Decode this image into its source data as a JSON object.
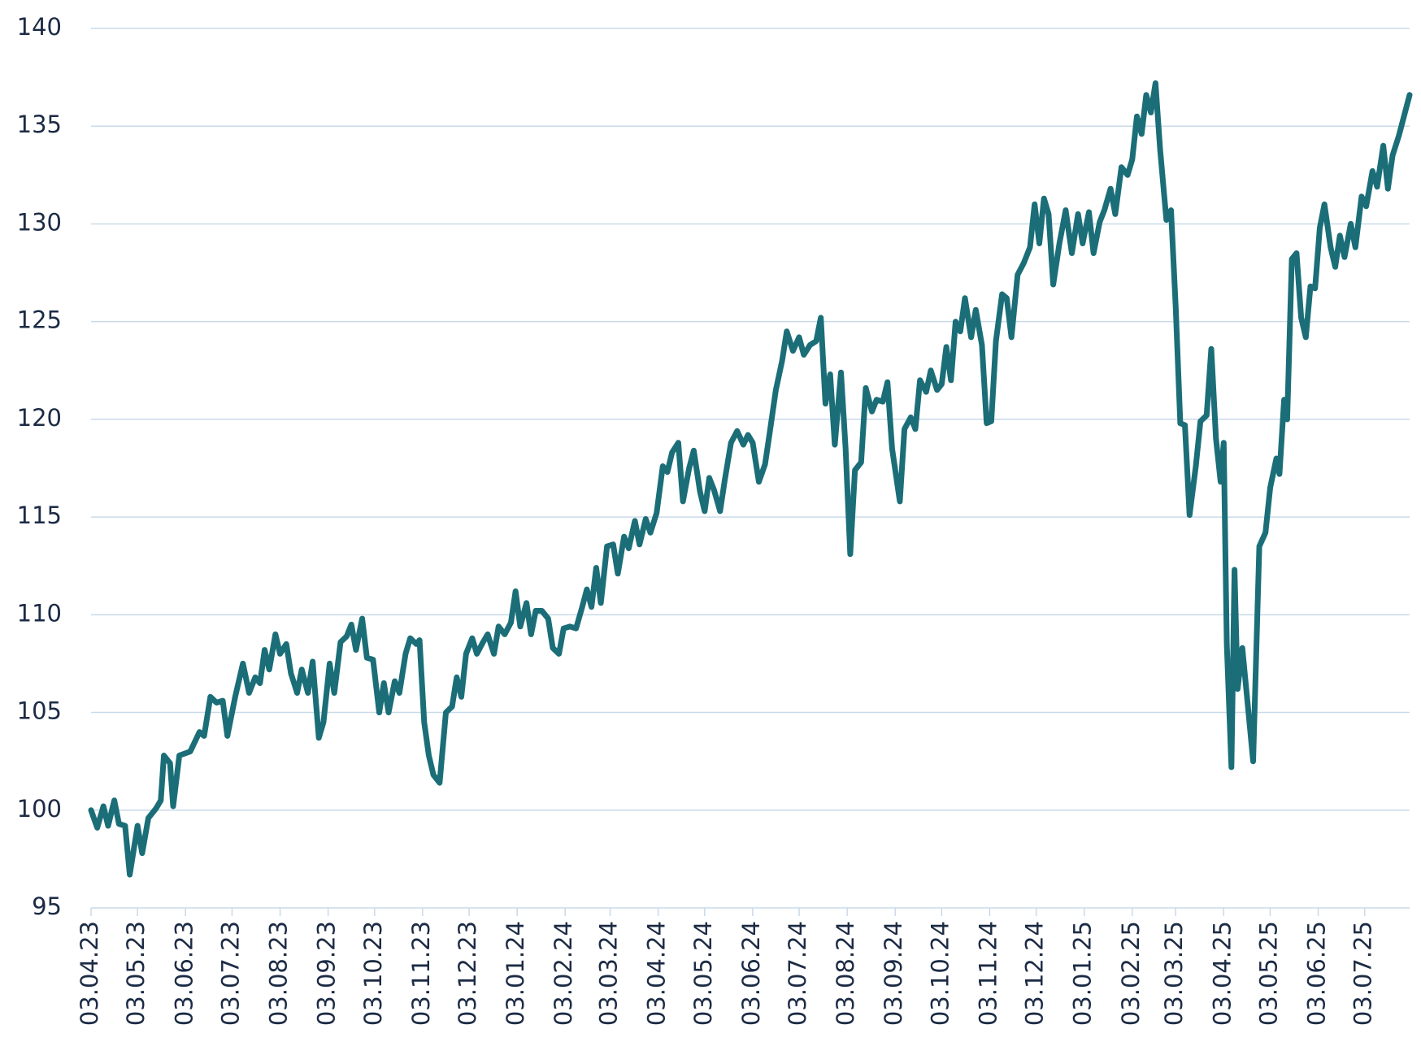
{
  "chart_data": {
    "type": "line",
    "color": "#1b6e78",
    "grid": true,
    "x": [
      "03.04.23",
      "07.04.23",
      "11.04.23",
      "14.04.23",
      "18.04.23",
      "21.04.23",
      "25.04.23",
      "28.04.23",
      "03.05.23",
      "06.05.23",
      "10.05.23",
      "15.05.23",
      "18.05.23",
      "20.05.23",
      "24.05.23",
      "26.05.23",
      "30.05.23",
      "06.06.23",
      "12.06.23",
      "15.06.23",
      "19.06.23",
      "23.06.23",
      "27.06.23",
      "30.06.23",
      "05.07.23",
      "10.07.23",
      "14.07.23",
      "18.07.23",
      "21.07.23",
      "24.07.23",
      "27.07.23",
      "31.07.23",
      "03.08.23",
      "07.08.23",
      "10.08.23",
      "14.08.23",
      "17.08.23",
      "21.08.23",
      "24.08.23",
      "28.08.23",
      "31.08.23",
      "04.09.23",
      "07.09.23",
      "11.09.23",
      "15.09.23",
      "18.09.23",
      "21.09.23",
      "25.09.23",
      "28.09.23",
      "02.10.23",
      "06.10.23",
      "09.10.23",
      "12.10.23",
      "16.10.23",
      "19.10.23",
      "23.10.23",
      "26.10.23",
      "30.10.23",
      "01.11.23",
      "04.11.23",
      "07.11.23",
      "10.11.23",
      "14.11.23",
      "18.11.23",
      "22.11.23",
      "25.11.23",
      "28.11.23",
      "01.12.23",
      "05.12.23",
      "08.12.23",
      "12.12.23",
      "15.12.23",
      "19.12.23",
      "22.12.23",
      "26.12.23",
      "30.12.23",
      "02.01.24",
      "05.01.24",
      "09.01.24",
      "12.01.24",
      "15.01.24",
      "19.01.24",
      "23.01.24",
      "26.01.24",
      "30.01.24",
      "02.02.24",
      "06.02.24",
      "10.02.24",
      "14.02.24",
      "17.02.24",
      "20.02.24",
      "23.02.24",
      "26.02.24",
      "01.03.24",
      "05.03.24",
      "08.03.24",
      "12.03.24",
      "15.03.24",
      "19.03.24",
      "22.03.24",
      "26.03.24",
      "29.03.24",
      "02.04.24",
      "06.04.24",
      "09.04.24",
      "12.04.24",
      "16.04.24",
      "19.04.24",
      "23.04.24",
      "26.04.24",
      "30.04.24",
      "03.05.24",
      "06.05.24",
      "09.05.24",
      "13.05.24",
      "16.05.24",
      "20.05.24",
      "24.05.24",
      "28.05.24",
      "31.05.24",
      "03.06.24",
      "07.06.24",
      "11.06.24",
      "14.06.24",
      "18.06.24",
      "22.06.24",
      "25.06.24",
      "29.06.24",
      "03.07.24",
      "06.07.24",
      "10.07.24",
      "14.07.24",
      "17.07.24",
      "20.07.24",
      "23.07.24",
      "26.07.24",
      "30.07.24",
      "02.08.24",
      "05.08.24",
      "08.08.24",
      "12.08.24",
      "15.08.24",
      "19.08.24",
      "22.08.24",
      "26.08.24",
      "29.08.24",
      "01.09.24",
      "06.09.24",
      "09.09.24",
      "13.09.24",
      "16.09.24",
      "19.09.24",
      "23.09.24",
      "26.09.24",
      "30.09.24",
      "03.10.24",
      "06.10.24",
      "09.10.24",
      "12.10.24",
      "15.10.24",
      "18.10.24",
      "22.10.24",
      "25.10.24",
      "29.10.24",
      "01.11.24",
      "04.11.24",
      "07.11.24",
      "11.11.24",
      "14.11.24",
      "17.11.24",
      "21.11.24",
      "25.11.24",
      "29.11.24",
      "02.12.24",
      "05.12.24",
      "08.12.24",
      "11.12.24",
      "14.12.24",
      "18.12.24",
      "22.12.24",
      "26.12.24",
      "30.12.24",
      "02.01.25",
      "06.01.25",
      "09.01.25",
      "13.01.25",
      "16.01.25",
      "20.01.25",
      "23.01.25",
      "27.01.25",
      "31.01.25",
      "03.02.25",
      "06.02.25",
      "09.02.25",
      "12.02.25",
      "15.02.25",
      "18.02.25",
      "21.02.25",
      "25.02.25",
      "28.02.25",
      "03.03.25",
      "06.03.25",
      "09.03.25",
      "12.03.25",
      "16.03.25",
      "19.03.25",
      "23.03.25",
      "26.03.25",
      "29.03.25",
      "01.04.25",
      "03.04.25",
      "05.04.25",
      "08.04.25",
      "10.04.25",
      "12.04.25",
      "15.04.25",
      "19.04.25",
      "22.04.25",
      "26.04.25",
      "30.04.25",
      "03.05.25",
      "07.05.25",
      "09.05.25",
      "12.05.25",
      "14.05.25",
      "17.05.25",
      "20.05.25",
      "23.05.25",
      "26.05.25",
      "29.05.25",
      "01.06.25",
      "04.06.25",
      "07.06.25",
      "11.06.25",
      "14.06.25",
      "17.06.25",
      "20.06.25",
      "24.06.25",
      "27.06.25",
      "01.07.25",
      "04.07.25",
      "08.07.25",
      "11.07.25",
      "15.07.25",
      "18.07.25",
      "21.07.25",
      "25.07.25",
      "28.07.25",
      "01.08.25"
    ],
    "values": [
      100,
      99.1,
      100.2,
      99.2,
      100.5,
      99.3,
      99.2,
      96.7,
      99.2,
      97.8,
      99.6,
      100.1,
      100.5,
      102.8,
      102.4,
      100.2,
      102.8,
      103.0,
      104.0,
      103.8,
      105.8,
      105.5,
      105.6,
      103.8,
      105.8,
      107.5,
      106.0,
      106.8,
      106.5,
      108.2,
      107.2,
      109.0,
      108.0,
      108.5,
      107.0,
      106.0,
      107.2,
      106.0,
      107.6,
      103.7,
      104.5,
      107.5,
      106.0,
      108.6,
      108.9,
      109.5,
      108.2,
      109.8,
      107.8,
      107.7,
      105.0,
      106.5,
      105.0,
      106.6,
      106.0,
      108.0,
      108.8,
      108.5,
      108.7,
      104.5,
      102.8,
      101.8,
      101.4,
      105.0,
      105.3,
      106.8,
      105.8,
      108.0,
      108.8,
      108.0,
      108.6,
      109.0,
      108.0,
      109.4,
      109.0,
      109.6,
      111.2,
      109.4,
      110.6,
      109.0,
      110.2,
      110.2,
      109.8,
      108.3,
      108.0,
      109.3,
      109.4,
      109.3,
      110.4,
      111.3,
      110.4,
      112.4,
      110.6,
      113.5,
      113.6,
      112.1,
      114.0,
      113.4,
      114.8,
      113.6,
      114.9,
      114.2,
      115.2,
      117.6,
      117.3,
      118.3,
      118.8,
      115.8,
      117.5,
      118.4,
      116.3,
      115.3,
      117.0,
      116.4,
      115.3,
      116.9,
      118.8,
      119.4,
      118.7,
      119.2,
      118.8,
      116.8,
      117.7,
      119.3,
      121.5,
      123.0,
      124.5,
      123.5,
      124.2,
      123.3,
      123.8,
      124.0,
      125.2,
      120.8,
      122.3,
      118.7,
      122.4,
      118.5,
      113.1,
      117.4,
      117.8,
      121.6,
      120.4,
      121.0,
      120.9,
      121.9,
      118.5,
      115.8,
      119.5,
      120.1,
      119.5,
      122.0,
      121.4,
      122.5,
      121.5,
      121.8,
      123.7,
      122.0,
      125.0,
      124.5,
      126.2,
      124.2,
      125.6,
      123.8,
      119.8,
      119.9,
      124.0,
      126.4,
      126.2,
      124.2,
      127.4,
      128.0,
      128.8,
      131.0,
      129.0,
      131.3,
      130.5,
      126.9,
      129.0,
      130.7,
      128.5,
      130.5,
      129.0,
      130.6,
      128.5,
      130.1,
      130.7,
      131.8,
      130.5,
      132.9,
      132.5,
      133.3,
      135.5,
      134.6,
      136.6,
      135.7,
      137.2,
      133.8,
      130.2,
      130.7,
      125.8,
      119.8,
      119.7,
      115.1,
      117.6,
      119.9,
      120.2,
      123.6,
      119.0,
      116.8,
      118.8,
      108.5,
      102.2,
      112.3,
      106.2,
      108.3,
      105.0,
      102.5,
      113.5,
      114.2,
      116.5,
      118.0,
      117.2,
      121.0,
      120.0,
      128.2,
      128.5,
      125.2,
      124.2,
      126.8,
      126.7,
      129.8,
      131.0,
      128.8,
      127.8,
      129.4,
      128.3,
      130.0,
      128.8,
      131.4,
      130.9,
      132.7,
      131.9,
      134.0,
      131.8,
      133.5,
      134.5,
      135.4,
      136.6
    ],
    "xlim": [
      "03.04.23",
      "01.08.25"
    ],
    "xticks": [
      "03.04.23",
      "03.05.23",
      "03.06.23",
      "03.07.23",
      "03.08.23",
      "03.09.23",
      "03.10.23",
      "03.11.23",
      "03.12.23",
      "03.01.24",
      "03.02.24",
      "03.03.24",
      "03.04.24",
      "03.05.24",
      "03.06.24",
      "03.07.24",
      "03.08.24",
      "03.09.24",
      "03.10.24",
      "03.11.24",
      "03.12.24",
      "03.01.25",
      "03.02.25",
      "03.03.25",
      "03.04.25",
      "03.05.25",
      "03.06.25",
      "03.07.25"
    ],
    "ylim": [
      95,
      140
    ],
    "yticks": [
      95,
      100,
      105,
      110,
      115,
      120,
      125,
      130,
      135,
      140
    ]
  }
}
